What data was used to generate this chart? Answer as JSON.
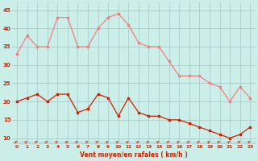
{
  "hours": [
    0,
    1,
    2,
    3,
    4,
    5,
    6,
    7,
    8,
    9,
    10,
    11,
    12,
    13,
    14,
    15,
    16,
    17,
    18,
    19,
    20,
    21,
    22,
    23
  ],
  "wind_avg": [
    20,
    21,
    22,
    20,
    22,
    22,
    17,
    18,
    22,
    21,
    16,
    21,
    17,
    16,
    16,
    15,
    15,
    14,
    13,
    12,
    11,
    10,
    11,
    13
  ],
  "wind_gust": [
    33,
    38,
    35,
    35,
    43,
    43,
    35,
    35,
    40,
    43,
    44,
    41,
    36,
    35,
    35,
    31,
    27,
    27,
    27,
    25,
    24,
    20,
    24,
    21
  ],
  "line_color_avg": "#cc2200",
  "line_color_gust": "#f08080",
  "bg_color": "#cceee8",
  "grid_color": "#aacccc",
  "xlabel": "Vent moyen/en rafales ( km/h )",
  "xlabel_color": "#cc2200",
  "tick_color": "#cc2200",
  "ylabel_values": [
    10,
    15,
    20,
    25,
    30,
    35,
    40,
    45
  ],
  "ylim": [
    8.5,
    47
  ],
  "xlim": [
    -0.5,
    23.5
  ],
  "arrow_color": "#cc2200",
  "marker_size": 2.0,
  "line_width": 0.9
}
